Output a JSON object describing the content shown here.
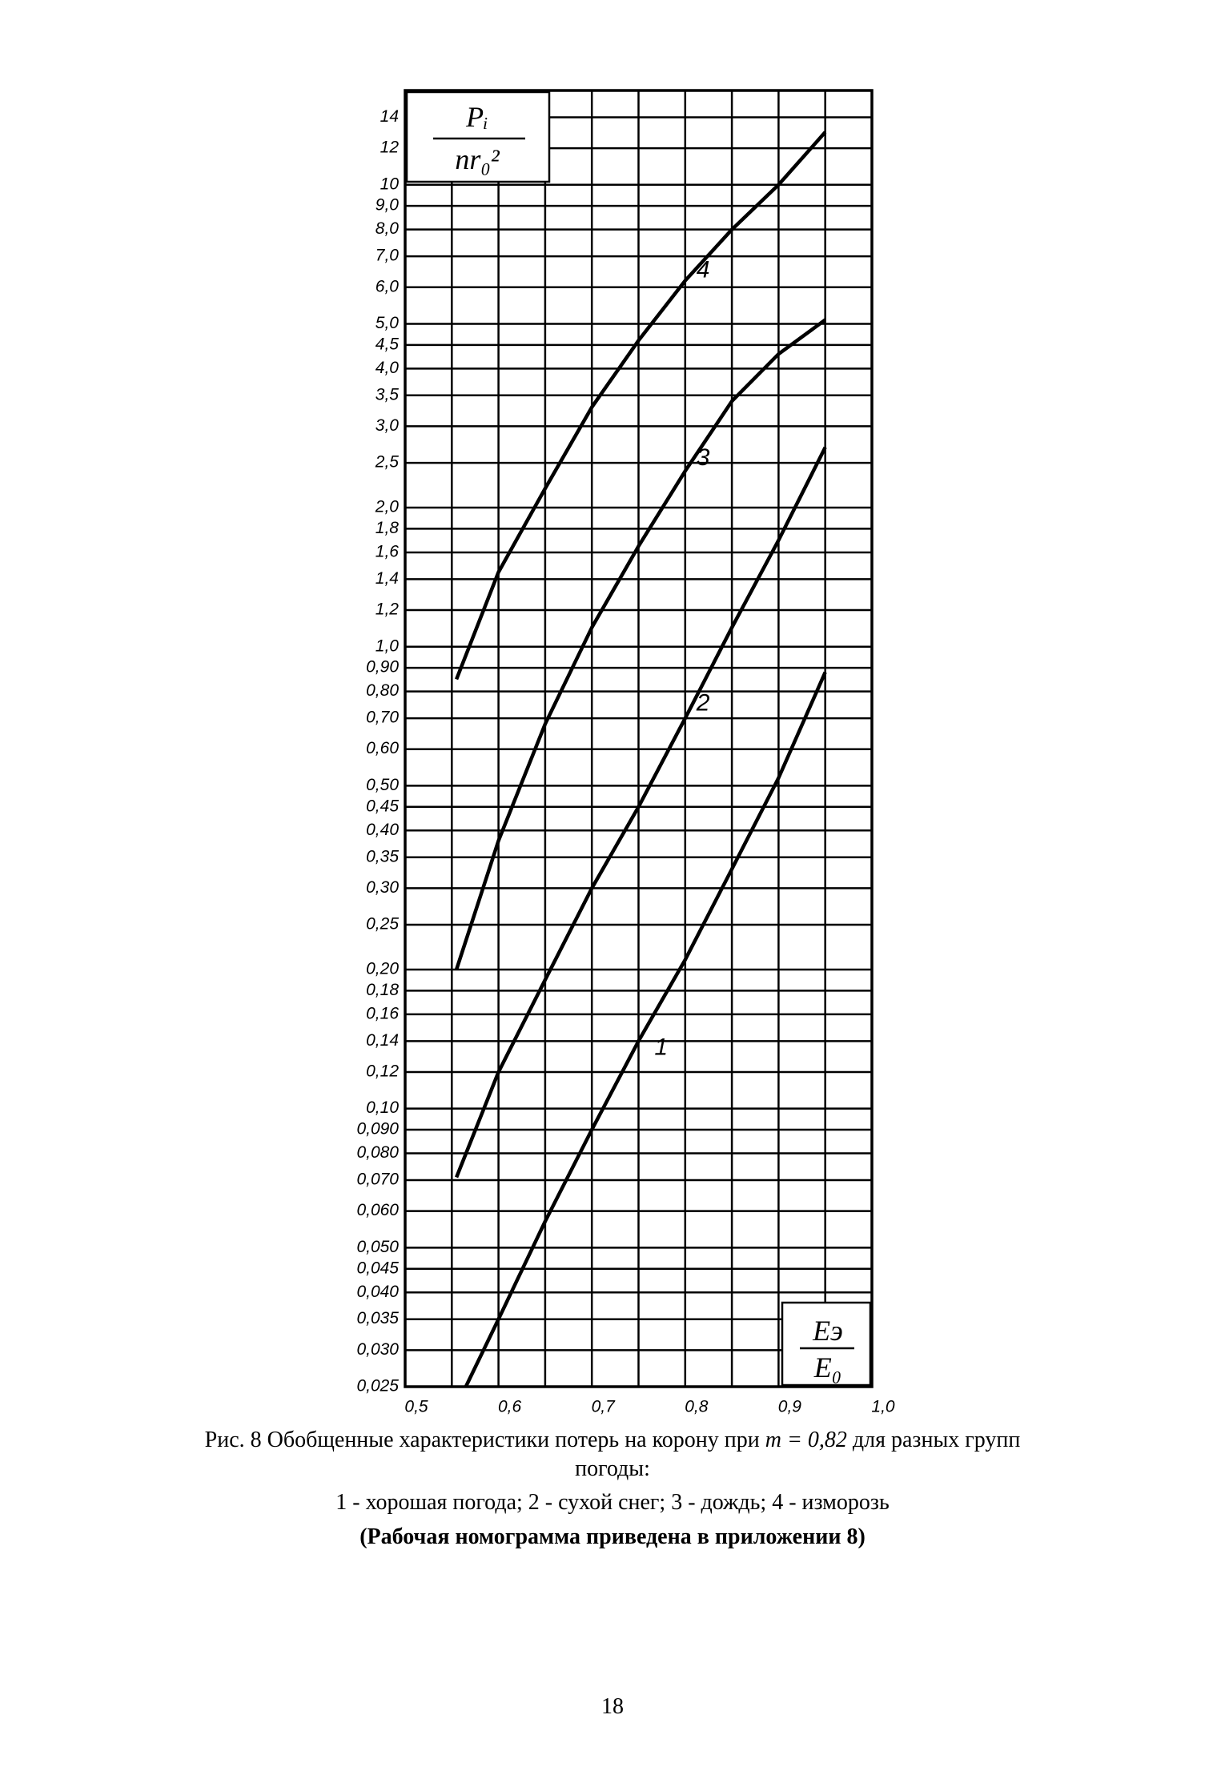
{
  "chart_data": {
    "type": "line",
    "y_label": [
      "Pᵢ",
      "nr₀²"
    ],
    "x_label": [
      "Eэ",
      "E₀"
    ],
    "log_y": true,
    "grid": true,
    "color": "#000000",
    "xlim": [
      0.5,
      1.0
    ],
    "xticks": [
      {
        "value": 0.5,
        "label": "0,5"
      },
      {
        "value": 0.6,
        "label": "0,6"
      },
      {
        "value": 0.7,
        "label": "0,7"
      },
      {
        "value": 0.8,
        "label": "0,8"
      },
      {
        "value": 0.9,
        "label": "0,9"
      },
      {
        "value": 1.0,
        "label": "1,0"
      }
    ],
    "x_minor_grid": [
      0.55,
      0.65,
      0.75,
      0.85,
      0.95
    ],
    "ylim": [
      0.025,
      16
    ],
    "yticks": [
      14,
      12,
      10,
      {
        "value": 9,
        "label": "9,0"
      },
      {
        "value": 8,
        "label": "8,0"
      },
      {
        "value": 7,
        "label": "7,0"
      },
      {
        "value": 6,
        "label": "6,0"
      },
      {
        "value": 5,
        "label": "5,0"
      },
      {
        "value": 4.5,
        "label": "4,5"
      },
      {
        "value": 4,
        "label": "4,0"
      },
      {
        "value": 3.5,
        "label": "3,5"
      },
      {
        "value": 3,
        "label": "3,0"
      },
      {
        "value": 2.5,
        "label": "2,5"
      },
      {
        "value": 2,
        "label": "2,0"
      },
      {
        "value": 1.8,
        "label": "1,8"
      },
      {
        "value": 1.6,
        "label": "1,6"
      },
      {
        "value": 1.4,
        "label": "1,4"
      },
      {
        "value": 1.2,
        "label": "1,2"
      },
      {
        "value": 1,
        "label": "1,0"
      },
      {
        "value": 0.9,
        "label": "0,90"
      },
      {
        "value": 0.8,
        "label": "0,80"
      },
      {
        "value": 0.7,
        "label": "0,70"
      },
      {
        "value": 0.6,
        "label": "0,60"
      },
      {
        "value": 0.5,
        "label": "0,50"
      },
      {
        "value": 0.45,
        "label": "0,45"
      },
      {
        "value": 0.4,
        "label": "0,40"
      },
      {
        "value": 0.35,
        "label": "0,35"
      },
      {
        "value": 0.3,
        "label": "0,30"
      },
      {
        "value": 0.25,
        "label": "0,25"
      },
      {
        "value": 0.2,
        "label": "0,20"
      },
      {
        "value": 0.18,
        "label": "0,18"
      },
      {
        "value": 0.16,
        "label": "0,16"
      },
      {
        "value": 0.14,
        "label": "0,14"
      },
      {
        "value": 0.12,
        "label": "0,12"
      },
      {
        "value": 0.1,
        "label": "0,10"
      },
      {
        "value": 0.09,
        "label": "0,090"
      },
      {
        "value": 0.08,
        "label": "0,080"
      },
      {
        "value": 0.07,
        "label": "0,070"
      },
      {
        "value": 0.06,
        "label": "0,060"
      },
      {
        "value": 0.05,
        "label": "0,050"
      },
      {
        "value": 0.045,
        "label": "0,045"
      },
      {
        "value": 0.04,
        "label": "0,040"
      },
      {
        "value": 0.035,
        "label": "0,035"
      },
      {
        "value": 0.03,
        "label": "0,030"
      },
      {
        "value": 0.025,
        "label": "0,025"
      }
    ],
    "series": [
      {
        "name": "1",
        "x": [
          0.565,
          0.6,
          0.65,
          0.7,
          0.75,
          0.8,
          0.85,
          0.9,
          0.95
        ],
        "values": [
          0.025,
          0.035,
          0.057,
          0.09,
          0.14,
          0.21,
          0.33,
          0.52,
          0.88
        ]
      },
      {
        "name": "2",
        "x": [
          0.555,
          0.6,
          0.65,
          0.7,
          0.75,
          0.8,
          0.85,
          0.9,
          0.95
        ],
        "values": [
          0.071,
          0.12,
          0.19,
          0.3,
          0.45,
          0.7,
          1.1,
          1.7,
          2.7
        ]
      },
      {
        "name": "3",
        "x": [
          0.555,
          0.6,
          0.65,
          0.7,
          0.75,
          0.8,
          0.85,
          0.9,
          0.95
        ],
        "values": [
          0.2,
          0.38,
          0.68,
          1.1,
          1.65,
          2.4,
          3.4,
          4.3,
          5.1
        ]
      },
      {
        "name": "4",
        "x": [
          0.555,
          0.6,
          0.65,
          0.7,
          0.75,
          0.8,
          0.85,
          0.9,
          0.95
        ],
        "values": [
          0.85,
          1.45,
          2.2,
          3.3,
          4.6,
          6.2,
          8.0,
          10,
          13
        ]
      }
    ]
  },
  "caption": {
    "line1_start": "Рис. 8 Обобщенные характеристики потерь на корону при ",
    "line1_italic": "m  = 0,82",
    "line1_end": " для разных групп",
    "line2": "погоды:",
    "line3": "1 - хорошая погода; 2 - сухой снег; 3 - дождь; 4 - изморозь",
    "line4": "(Рабочая номограмма приведена в приложении 8)"
  },
  "page_number": "18"
}
